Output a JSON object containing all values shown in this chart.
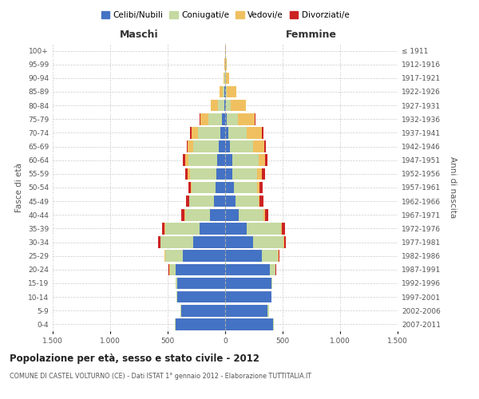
{
  "age_groups": [
    "0-4",
    "5-9",
    "10-14",
    "15-19",
    "20-24",
    "25-29",
    "30-34",
    "35-39",
    "40-44",
    "45-49",
    "50-54",
    "55-59",
    "60-64",
    "65-69",
    "70-74",
    "75-79",
    "80-84",
    "85-89",
    "90-94",
    "95-99",
    "100+"
  ],
  "birth_years": [
    "2007-2011",
    "2002-2006",
    "1997-2001",
    "1992-1996",
    "1987-1991",
    "1982-1986",
    "1977-1981",
    "1972-1976",
    "1967-1971",
    "1962-1966",
    "1957-1961",
    "1952-1956",
    "1947-1951",
    "1942-1946",
    "1937-1941",
    "1932-1936",
    "1927-1931",
    "1922-1926",
    "1917-1921",
    "1912-1916",
    "≤ 1911"
  ],
  "colors": {
    "celibi": "#4472c4",
    "coniugati": "#c5d9a0",
    "vedovi": "#f0c060",
    "divorziati": "#cc2222"
  },
  "maschi": {
    "celibi": [
      430,
      380,
      420,
      420,
      430,
      370,
      280,
      220,
      130,
      100,
      80,
      75,
      70,
      55,
      45,
      25,
      10,
      5,
      3,
      2,
      2
    ],
    "coniugati": [
      5,
      10,
      5,
      10,
      50,
      150,
      280,
      300,
      220,
      210,
      210,
      230,
      250,
      220,
      190,
      120,
      55,
      15,
      5,
      0,
      0
    ],
    "vedovi": [
      0,
      0,
      0,
      0,
      5,
      5,
      5,
      5,
      5,
      5,
      10,
      20,
      30,
      50,
      60,
      70,
      60,
      30,
      8,
      2,
      0
    ],
    "divorziati": [
      0,
      0,
      0,
      0,
      5,
      5,
      15,
      25,
      25,
      25,
      20,
      20,
      20,
      10,
      10,
      5,
      0,
      0,
      0,
      0,
      0
    ]
  },
  "femmine": {
    "celibi": [
      420,
      370,
      400,
      400,
      390,
      320,
      240,
      190,
      120,
      90,
      75,
      65,
      60,
      40,
      30,
      15,
      8,
      5,
      3,
      2,
      2
    ],
    "coniugati": [
      5,
      10,
      5,
      10,
      45,
      140,
      270,
      295,
      215,
      200,
      200,
      215,
      230,
      200,
      160,
      95,
      40,
      10,
      5,
      0,
      0
    ],
    "vedovi": [
      0,
      0,
      0,
      0,
      5,
      5,
      5,
      5,
      10,
      10,
      25,
      40,
      60,
      100,
      130,
      150,
      130,
      80,
      30,
      10,
      2
    ],
    "divorziati": [
      0,
      0,
      0,
      0,
      5,
      5,
      15,
      30,
      30,
      30,
      25,
      25,
      20,
      15,
      10,
      5,
      0,
      0,
      0,
      0,
      0
    ]
  },
  "xlim": 1500,
  "title": "Popolazione per età, sesso e stato civile - 2012",
  "subtitle": "COMUNE DI CASTEL VOLTURNO (CE) - Dati ISTAT 1° gennaio 2012 - Elaborazione TUTTITALIA.IT",
  "ylabel_left": "Fasce di età",
  "ylabel_right": "Anni di nascita",
  "xtick_positions": [
    -1500,
    -1000,
    -500,
    0,
    500,
    1000,
    1500
  ],
  "xtick_labels": [
    "1.500",
    "1.000",
    "500",
    "0",
    "500",
    "1.000",
    "1.500"
  ],
  "legend_labels": [
    "Celibi/Nubili",
    "Coniugati/e",
    "Vedovi/e",
    "Divorziati/e"
  ],
  "legend_colors": [
    "#4472c4",
    "#c5d9a0",
    "#f0c060",
    "#cc2222"
  ],
  "header_maschi": "Maschi",
  "header_femmine": "Femmine"
}
